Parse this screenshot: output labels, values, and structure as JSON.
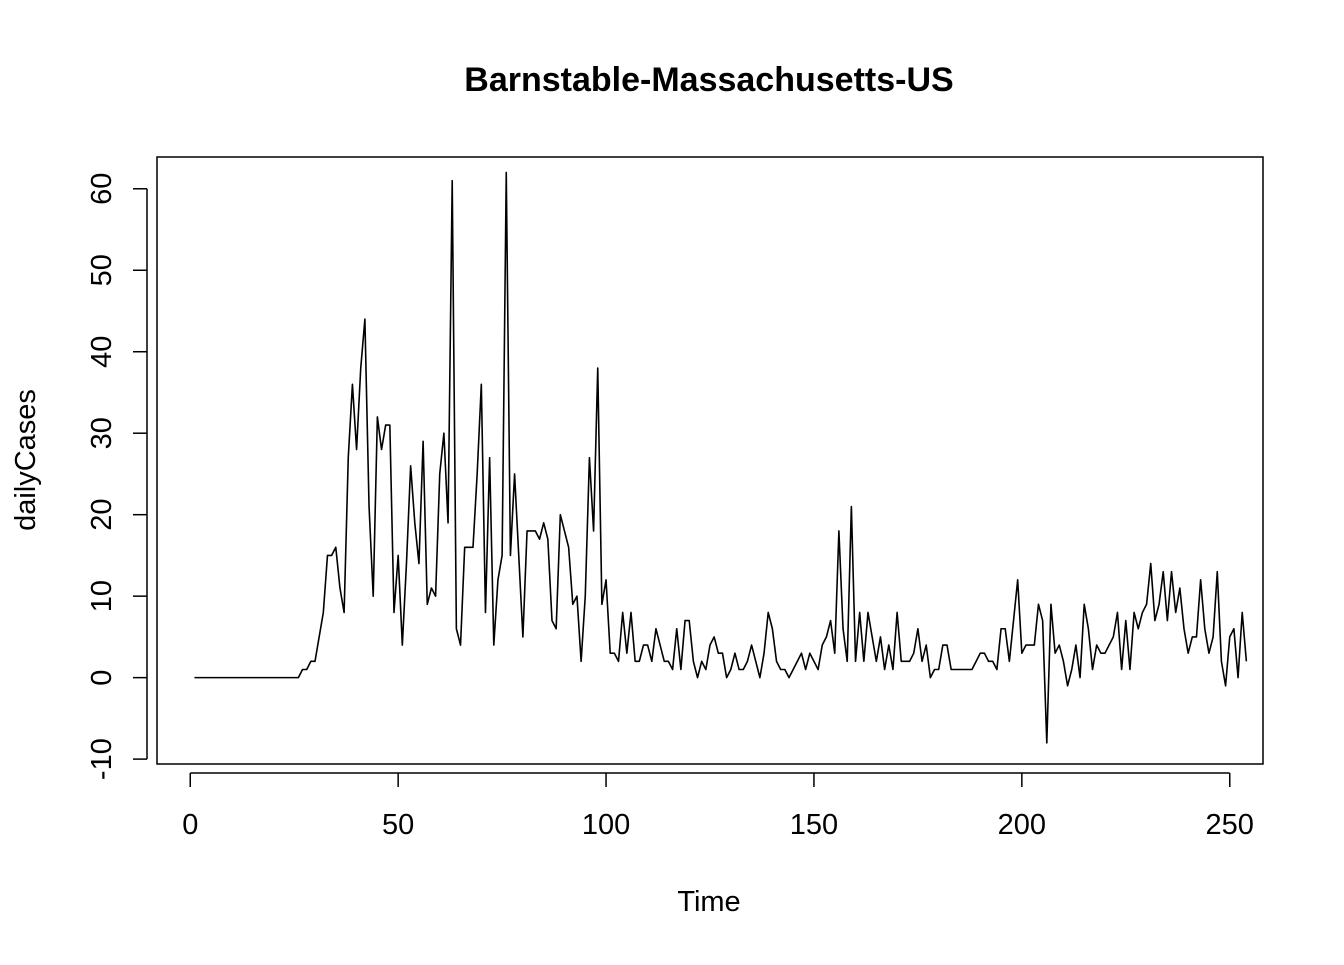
{
  "chart_data": {
    "type": "line",
    "title": "Barnstable-Massachusetts-US",
    "xlabel": "Time",
    "ylabel": "dailyCases",
    "xlim": [
      -8,
      258
    ],
    "ylim": [
      -10.6,
      63.9
    ],
    "x_ticks": [
      0,
      50,
      100,
      150,
      200,
      250
    ],
    "x_tick_labels": [
      "0",
      "50",
      "100",
      "150",
      "200",
      "250"
    ],
    "y_ticks": [
      -10,
      0,
      10,
      20,
      30,
      40,
      50,
      60
    ],
    "y_tick_labels": [
      "-10",
      "0",
      "10",
      "20",
      "30",
      "40",
      "50",
      "60"
    ],
    "grid": false,
    "legend": "none",
    "line_color": "#000000",
    "series": [
      {
        "x_start": 1,
        "x_step": 1,
        "values": [
          0,
          0,
          0,
          0,
          0,
          0,
          0,
          0,
          0,
          0,
          0,
          0,
          0,
          0,
          0,
          0,
          0,
          0,
          0,
          0,
          0,
          0,
          0,
          0,
          0,
          0,
          1,
          1,
          2,
          2,
          5,
          8,
          15,
          15,
          16,
          11,
          8,
          27,
          36,
          28,
          38,
          44,
          21,
          10,
          32,
          28,
          31,
          31,
          8,
          15,
          4,
          14,
          26,
          19,
          14,
          29,
          9,
          11,
          10,
          25,
          30,
          19,
          61,
          6,
          4,
          16,
          16,
          16,
          25,
          36,
          8,
          27,
          4,
          12,
          15,
          62,
          15,
          25,
          15,
          5,
          18,
          18,
          18,
          17,
          19,
          17,
          7,
          6,
          20,
          18,
          16,
          9,
          10,
          2,
          10,
          27,
          18,
          38,
          9,
          12,
          3,
          3,
          2,
          8,
          3,
          8,
          2,
          2,
          4,
          4,
          2,
          6,
          4,
          2,
          2,
          1,
          6,
          1,
          7,
          7,
          2,
          0,
          2,
          1,
          4,
          5,
          3,
          3,
          0,
          1,
          3,
          1,
          1,
          2,
          4,
          2,
          0,
          3,
          8,
          6,
          2,
          1,
          1,
          0,
          1,
          2,
          3,
          1,
          3,
          2,
          1,
          4,
          5,
          7,
          3,
          18,
          6,
          2,
          21,
          2,
          8,
          2,
          8,
          5,
          2,
          5,
          1,
          4,
          1,
          8,
          2,
          2,
          2,
          3,
          6,
          2,
          4,
          0,
          1,
          1,
          4,
          4,
          1,
          1,
          1,
          1,
          1,
          1,
          2,
          3,
          3,
          2,
          2,
          1,
          6,
          6,
          2,
          7,
          12,
          3,
          4,
          4,
          4,
          9,
          7,
          -8,
          9,
          3,
          4,
          2,
          -1,
          1,
          4,
          0,
          9,
          6,
          1,
          4,
          3,
          3,
          4,
          5,
          8,
          1,
          7,
          1,
          8,
          6,
          8,
          9,
          14,
          7,
          9,
          13,
          7,
          13,
          8,
          11,
          6,
          3,
          5,
          5,
          12,
          6,
          3,
          5,
          13,
          2,
          -1,
          5,
          6,
          0,
          8,
          2
        ]
      }
    ]
  }
}
